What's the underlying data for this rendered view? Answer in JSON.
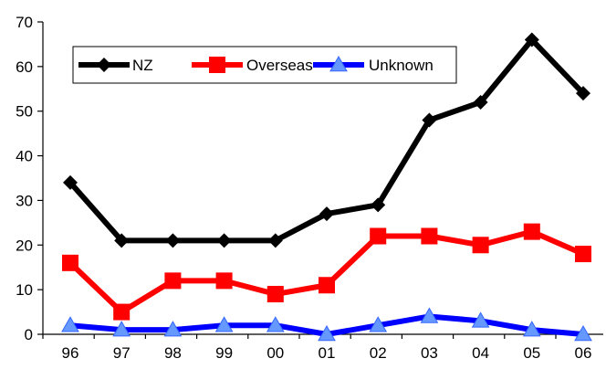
{
  "chart_data": {
    "type": "line",
    "title": "",
    "xlabel": "",
    "ylabel": "",
    "categories": [
      "96",
      "97",
      "98",
      "99",
      "00",
      "01",
      "02",
      "03",
      "04",
      "05",
      "06"
    ],
    "ylim": [
      0,
      70
    ],
    "yticks": [
      0,
      10,
      20,
      30,
      40,
      50,
      60,
      70
    ],
    "grid": false,
    "legend_position": "top-left",
    "series": [
      {
        "name": "NZ",
        "color": "#000000",
        "marker": "diamond",
        "values": [
          34,
          21,
          21,
          21,
          21,
          27,
          29,
          48,
          52,
          66,
          54
        ]
      },
      {
        "name": "Overseas",
        "color": "#ff0000",
        "marker": "square",
        "values": [
          16,
          5,
          12,
          12,
          9,
          11,
          22,
          22,
          20,
          23,
          18
        ]
      },
      {
        "name": "Unknown",
        "color": "#0000ff",
        "marker": "triangle",
        "values": [
          2,
          1,
          1,
          2,
          2,
          0,
          2,
          4,
          3,
          1,
          0
        ]
      }
    ]
  }
}
